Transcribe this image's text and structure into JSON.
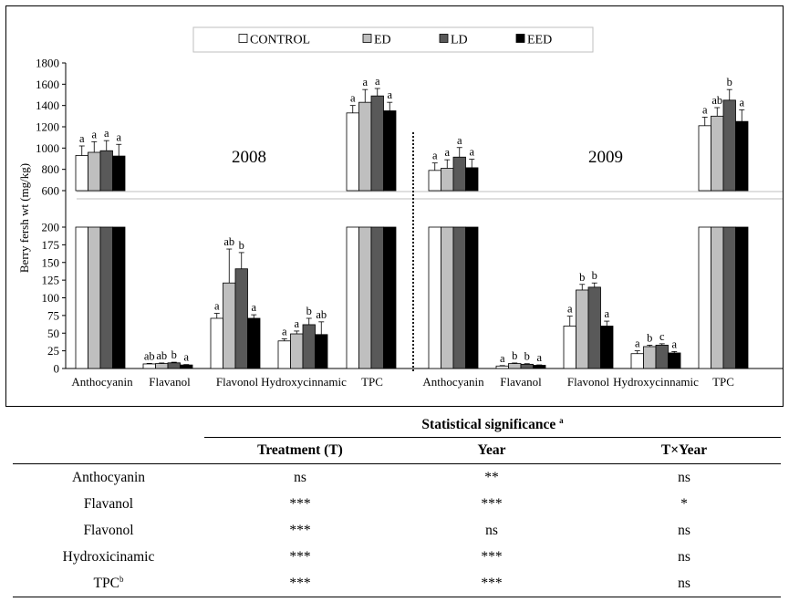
{
  "chart_data": {
    "type": "bar",
    "ylabel": "Berry fersh wt (mg/kg)",
    "legend": {
      "placement": "top-center",
      "items": [
        "CONTROL",
        "ED",
        "LD",
        "EED"
      ]
    },
    "colors": [
      "#ffffff",
      "#bfbfbf",
      "#595959",
      "#000000"
    ],
    "categories": [
      "Anthocyanin",
      "Flavanol",
      "Flavonol",
      "Hydroxycinnamic",
      "TPC"
    ],
    "axis_break": {
      "lower_ylim": [
        0,
        200
      ],
      "upper_ylim": [
        600,
        1800
      ]
    },
    "lower_ticks": [
      "0",
      "25",
      "50",
      "75",
      "100",
      "125",
      "150",
      "175",
      "200"
    ],
    "upper_ticks": [
      "600",
      "800",
      "1000",
      "1200",
      "1400",
      "1600",
      "1800"
    ],
    "panels": [
      {
        "year": "2008",
        "groups": [
          {
            "category": "Anthocyanin",
            "values": [
              930,
              960,
              975,
              925
            ],
            "errors": [
              90,
              100,
              95,
              110
            ],
            "letters": [
              "a",
              "a",
              "a",
              "a"
            ]
          },
          {
            "category": "Flavanol",
            "values": [
              6.5,
              7,
              8,
              5
            ],
            "errors": [
              0.7,
              0.8,
              0.9,
              0.6
            ],
            "letters": [
              "ab",
              "ab",
              "b",
              "a"
            ]
          },
          {
            "category": "Flavonol",
            "values": [
              71,
              121,
              141,
              71
            ],
            "errors": [
              7,
              48,
              23,
              5
            ],
            "letters": [
              "a",
              "ab",
              "b",
              "a"
            ]
          },
          {
            "category": "Hydroxycinnamic",
            "values": [
              39,
              49,
              62,
              48
            ],
            "errors": [
              3,
              4,
              9,
              18
            ],
            "letters": [
              "a",
              "a",
              "b",
              "ab"
            ]
          },
          {
            "category": "TPC",
            "values": [
              1330,
              1430,
              1490,
              1350
            ],
            "errors": [
              70,
              120,
              70,
              80
            ],
            "letters": [
              "a",
              "a",
              "a",
              "a"
            ]
          }
        ]
      },
      {
        "year": "2009",
        "groups": [
          {
            "category": "Anthocyanin",
            "values": [
              790,
              810,
              915,
              815
            ],
            "errors": [
              70,
              80,
              90,
              80
            ],
            "letters": [
              "a",
              "a",
              "a",
              "a"
            ]
          },
          {
            "category": "Flavanol",
            "values": [
              3.5,
              7,
              6,
              4.5
            ],
            "errors": [
              0.6,
              0.8,
              0.8,
              0.6
            ],
            "letters": [
              "a",
              "b",
              "b",
              "a"
            ]
          },
          {
            "category": "Flavonol",
            "values": [
              60,
              111,
              115,
              60
            ],
            "errors": [
              14,
              8,
              6,
              7
            ],
            "letters": [
              "a",
              "b",
              "b",
              "a"
            ]
          },
          {
            "category": "Hydroxycinnamic",
            "values": [
              21,
              31,
              33,
              22
            ],
            "errors": [
              4,
              2,
              2,
              2
            ],
            "letters": [
              "a",
              "b",
              "c",
              "a"
            ]
          },
          {
            "category": "TPC",
            "values": [
              1210,
              1300,
              1450,
              1250
            ],
            "errors": [
              80,
              80,
              100,
              110
            ],
            "letters": [
              "a",
              "ab",
              "b",
              "a"
            ]
          }
        ]
      }
    ]
  },
  "table": {
    "title": "Statistical significance",
    "title_note": "a",
    "headers": [
      "Treatment (T)",
      "Year",
      "T×Year"
    ],
    "rows": [
      {
        "label": "Anthocyanin",
        "note": "",
        "values": [
          "ns",
          "**",
          "ns"
        ]
      },
      {
        "label": "Flavanol",
        "note": "",
        "values": [
          "***",
          "***",
          "*"
        ]
      },
      {
        "label": "Flavonol",
        "note": "",
        "values": [
          "***",
          "ns",
          "ns"
        ]
      },
      {
        "label": "Hydroxicinamic",
        "note": "",
        "values": [
          "***",
          "***",
          "ns"
        ]
      },
      {
        "label": "TPC",
        "note": "b",
        "values": [
          "***",
          "***",
          "ns"
        ]
      }
    ]
  }
}
